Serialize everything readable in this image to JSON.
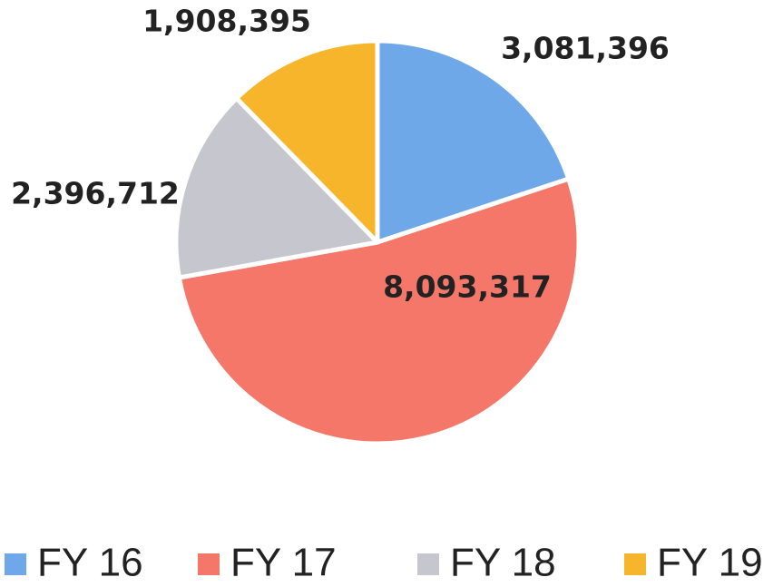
{
  "chart_data": {
    "type": "pie",
    "categories": [
      "FY 16",
      "FY 17",
      "FY 18",
      "FY 19"
    ],
    "values": [
      3081396,
      8093317,
      2396712,
      1908395
    ],
    "value_labels": [
      "3,081,396",
      "8,093,317",
      "2,396,712",
      "1,908,395"
    ],
    "colors": [
      "#6fa8e8",
      "#f4776a",
      "#c6c6ce",
      "#f7b52c"
    ],
    "legend": "bottom"
  }
}
